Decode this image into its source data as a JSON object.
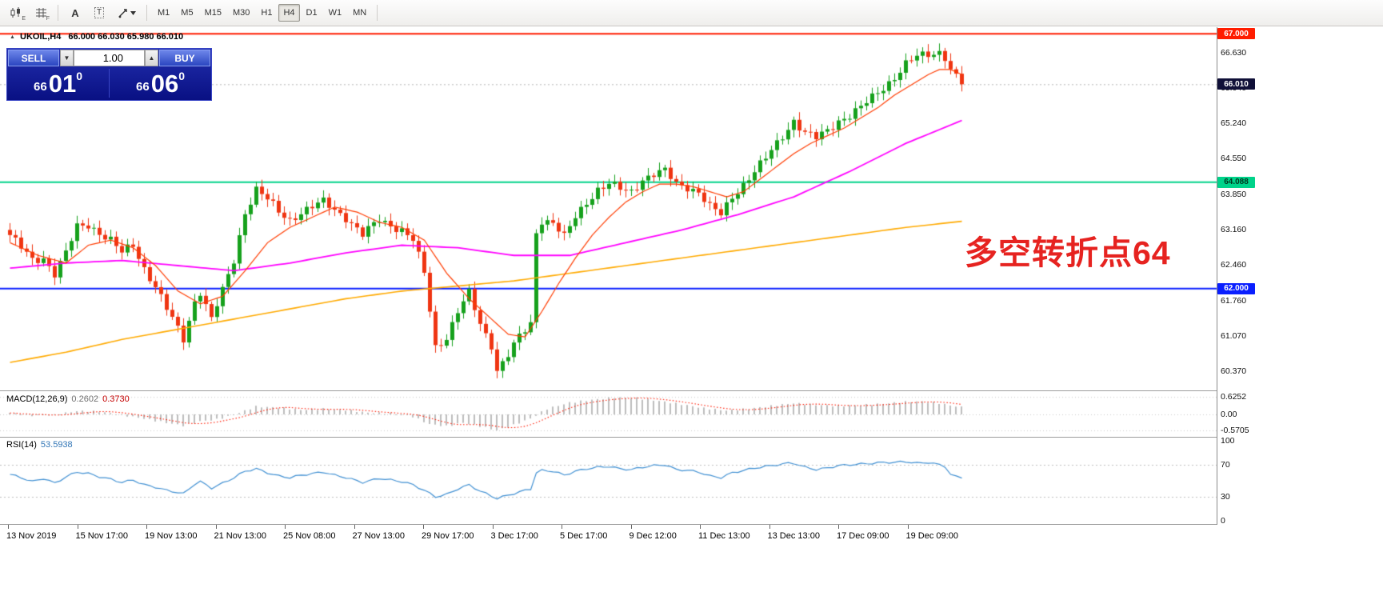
{
  "toolbar": {
    "icons": [
      {
        "name": "candlestick-chart-icon",
        "sub": "E"
      },
      {
        "name": "bar-grid-icon",
        "sub": "F"
      },
      {
        "name": "text-tool-icon",
        "glyph": "A"
      },
      {
        "name": "label-tool-icon",
        "glyph": "T"
      },
      {
        "name": "line-tools-icon",
        "sub": ""
      }
    ],
    "timeframes": [
      {
        "label": "M1",
        "active": false
      },
      {
        "label": "M5",
        "active": false
      },
      {
        "label": "M15",
        "active": false
      },
      {
        "label": "M30",
        "active": false
      },
      {
        "label": "H1",
        "active": false
      },
      {
        "label": "H4",
        "active": true
      },
      {
        "label": "D1",
        "active": false
      },
      {
        "label": "W1",
        "active": false
      },
      {
        "label": "MN",
        "active": false
      }
    ]
  },
  "chart": {
    "title_symbol": "UKOIL,H4",
    "title_ohlc": "66.000 66.030 65.980 66.010"
  },
  "trade_panel": {
    "sell_label": "SELL",
    "buy_label": "BUY",
    "volume": "1.00",
    "sell_price": {
      "small": "66",
      "big": "01",
      "sup": "0"
    },
    "buy_price": {
      "small": "66",
      "big": "06",
      "sup": "0"
    }
  },
  "annotation": {
    "text": "多空转折点64"
  },
  "price_scale": {
    "ticks": [
      "66.630",
      "65.940",
      "65.240",
      "64.550",
      "63.850",
      "63.160",
      "62.460",
      "61.760",
      "61.070",
      "60.370"
    ]
  },
  "macd_panel": {
    "name": "MACD(12,26,9)",
    "value_main": "0.2602",
    "value_signal": "0.3730",
    "scale": [
      {
        "v": 0.6252,
        "label": "0.6252"
      },
      {
        "v": 0.0,
        "label": "0.00"
      },
      {
        "v": -0.5705,
        "label": "-0.5705"
      }
    ]
  },
  "rsi_panel": {
    "name": "RSI(14)",
    "value": "53.5938",
    "scale": [
      {
        "v": 100,
        "label": "100"
      },
      {
        "v": 70,
        "label": "70"
      },
      {
        "v": 30,
        "label": "30"
      },
      {
        "v": 0,
        "label": "0"
      }
    ]
  },
  "chart_data": {
    "type": "candlestick",
    "symbol": "UKOIL",
    "timeframe": "H4",
    "last_ohlc": {
      "open": 66.0,
      "high": 66.03,
      "low": 65.98,
      "close": 66.01
    },
    "visible_price_range": [
      60.0,
      67.13
    ],
    "bars": 171,
    "h_lines": [
      {
        "price": 67.0,
        "color": "#ff1d00",
        "label": "67.000",
        "text": "#ffffff"
      },
      {
        "price": 64.088,
        "color": "#00d38a",
        "label": "64.088",
        "text": "#00361f"
      },
      {
        "price": 62.0,
        "color": "#0a1fff",
        "label": "62.000",
        "text": "#ffffff"
      }
    ],
    "bid_line": {
      "price": 66.01,
      "label": "66.010",
      "color": "#101038",
      "text": "#ffffff"
    },
    "candle_up_color": "#16a11c",
    "candle_down_color": "#ef3512",
    "close_path": [
      [
        0,
        63.05
      ],
      [
        2,
        62.8
      ],
      [
        4,
        62.55
      ],
      [
        6,
        62.6
      ],
      [
        8,
        62.3
      ],
      [
        10,
        62.7
      ],
      [
        12,
        63.2
      ],
      [
        14,
        63.25
      ],
      [
        16,
        63.1
      ],
      [
        18,
        62.95
      ],
      [
        20,
        62.7
      ],
      [
        22,
        62.85
      ],
      [
        24,
        62.4
      ],
      [
        26,
        62.05
      ],
      [
        28,
        61.6
      ],
      [
        31,
        61.0
      ],
      [
        33,
        61.75
      ],
      [
        34,
        61.95
      ],
      [
        36,
        61.4
      ],
      [
        38,
        61.95
      ],
      [
        40,
        62.55
      ],
      [
        42,
        63.5
      ],
      [
        44,
        63.95
      ],
      [
        46,
        63.75
      ],
      [
        48,
        63.5
      ],
      [
        50,
        63.35
      ],
      [
        52,
        63.5
      ],
      [
        54,
        63.6
      ],
      [
        56,
        63.7
      ],
      [
        58,
        63.55
      ],
      [
        60,
        63.4
      ],
      [
        63,
        63.05
      ],
      [
        66,
        63.35
      ],
      [
        68,
        63.25
      ],
      [
        70,
        63.15
      ],
      [
        72,
        62.95
      ],
      [
        74,
        62.3
      ],
      [
        76,
        60.85
      ],
      [
        78,
        61.05
      ],
      [
        80,
        61.55
      ],
      [
        82,
        61.9
      ],
      [
        84,
        61.3
      ],
      [
        86,
        60.9
      ],
      [
        87,
        60.4
      ],
      [
        89,
        60.7
      ],
      [
        91,
        61.05
      ],
      [
        93,
        61.3
      ],
      [
        94,
        63.1
      ],
      [
        95,
        63.35
      ],
      [
        97,
        63.3
      ],
      [
        99,
        63.0
      ],
      [
        101,
        63.4
      ],
      [
        103,
        63.7
      ],
      [
        105,
        63.95
      ],
      [
        107,
        64.05
      ],
      [
        109,
        63.95
      ],
      [
        111,
        63.9
      ],
      [
        113,
        64.15
      ],
      [
        115,
        64.25
      ],
      [
        117,
        64.3
      ],
      [
        119,
        64.05
      ],
      [
        121,
        64.0
      ],
      [
        123,
        63.9
      ],
      [
        125,
        63.6
      ],
      [
        127,
        63.45
      ],
      [
        129,
        63.8
      ],
      [
        131,
        64.05
      ],
      [
        133,
        64.3
      ],
      [
        135,
        64.55
      ],
      [
        137,
        64.85
      ],
      [
        139,
        65.15
      ],
      [
        140,
        65.3
      ],
      [
        142,
        65.05
      ],
      [
        144,
        64.95
      ],
      [
        146,
        65.1
      ],
      [
        148,
        65.3
      ],
      [
        150,
        65.4
      ],
      [
        152,
        65.55
      ],
      [
        154,
        65.75
      ],
      [
        156,
        65.95
      ],
      [
        158,
        66.15
      ],
      [
        160,
        66.4
      ],
      [
        162,
        66.55
      ],
      [
        164,
        66.6
      ],
      [
        166,
        66.65
      ],
      [
        167,
        66.55
      ],
      [
        168,
        66.3
      ],
      [
        169,
        66.15
      ],
      [
        170,
        66.01
      ]
    ],
    "ma_fast": {
      "color": "#ff3c00",
      "points": [
        [
          0,
          62.9
        ],
        [
          5,
          62.65
        ],
        [
          10,
          62.5
        ],
        [
          14,
          62.85
        ],
        [
          18,
          62.95
        ],
        [
          22,
          62.8
        ],
        [
          26,
          62.45
        ],
        [
          30,
          61.95
        ],
        [
          34,
          61.7
        ],
        [
          38,
          61.85
        ],
        [
          42,
          62.35
        ],
        [
          46,
          62.9
        ],
        [
          50,
          63.2
        ],
        [
          54,
          63.4
        ],
        [
          58,
          63.6
        ],
        [
          62,
          63.5
        ],
        [
          66,
          63.3
        ],
        [
          70,
          63.2
        ],
        [
          74,
          62.95
        ],
        [
          78,
          62.3
        ],
        [
          82,
          61.8
        ],
        [
          86,
          61.4
        ],
        [
          89,
          61.1
        ],
        [
          92,
          61.05
        ],
        [
          95,
          61.55
        ],
        [
          98,
          62.1
        ],
        [
          101,
          62.6
        ],
        [
          104,
          63.05
        ],
        [
          107,
          63.4
        ],
        [
          110,
          63.7
        ],
        [
          113,
          63.9
        ],
        [
          116,
          64.05
        ],
        [
          119,
          64.05
        ],
        [
          122,
          64.0
        ],
        [
          125,
          63.9
        ],
        [
          128,
          63.8
        ],
        [
          131,
          63.9
        ],
        [
          134,
          64.15
        ],
        [
          137,
          64.4
        ],
        [
          140,
          64.65
        ],
        [
          143,
          64.85
        ],
        [
          146,
          65.0
        ],
        [
          149,
          65.15
        ],
        [
          152,
          65.35
        ],
        [
          155,
          65.55
        ],
        [
          158,
          65.8
        ],
        [
          161,
          66.0
        ],
        [
          164,
          66.2
        ],
        [
          166,
          66.3
        ],
        [
          168,
          66.3
        ],
        [
          170,
          66.2
        ]
      ]
    },
    "ma_mid": {
      "color": "#ff00ff",
      "points": [
        [
          0,
          62.4
        ],
        [
          10,
          62.5
        ],
        [
          20,
          62.55
        ],
        [
          30,
          62.45
        ],
        [
          40,
          62.35
        ],
        [
          50,
          62.5
        ],
        [
          60,
          62.7
        ],
        [
          70,
          62.85
        ],
        [
          80,
          62.8
        ],
        [
          90,
          62.65
        ],
        [
          100,
          62.65
        ],
        [
          110,
          62.9
        ],
        [
          120,
          63.15
        ],
        [
          130,
          63.45
        ],
        [
          140,
          63.8
        ],
        [
          150,
          64.3
        ],
        [
          160,
          64.85
        ],
        [
          170,
          65.3
        ]
      ]
    },
    "ma_slow": {
      "color": "#ffaa00",
      "points": [
        [
          0,
          60.55
        ],
        [
          10,
          60.75
        ],
        [
          20,
          61.0
        ],
        [
          30,
          61.2
        ],
        [
          40,
          61.4
        ],
        [
          50,
          61.6
        ],
        [
          60,
          61.8
        ],
        [
          70,
          61.95
        ],
        [
          80,
          62.05
        ],
        [
          90,
          62.15
        ],
        [
          100,
          62.3
        ],
        [
          110,
          62.45
        ],
        [
          120,
          62.6
        ],
        [
          130,
          62.75
        ],
        [
          140,
          62.9
        ],
        [
          150,
          63.05
        ],
        [
          160,
          63.2
        ],
        [
          170,
          63.32
        ]
      ]
    },
    "macd": {
      "hist_color": "#bdbdbd",
      "signal_color": "#ff1a00",
      "range": [
        -0.8,
        0.8
      ],
      "hist": [
        [
          0,
          0.05
        ],
        [
          4,
          -0.04
        ],
        [
          8,
          -0.02
        ],
        [
          12,
          0.12
        ],
        [
          16,
          0.1
        ],
        [
          20,
          -0.02
        ],
        [
          24,
          -0.15
        ],
        [
          28,
          -0.3
        ],
        [
          31,
          -0.4
        ],
        [
          34,
          -0.25
        ],
        [
          37,
          -0.18
        ],
        [
          40,
          -0.02
        ],
        [
          44,
          0.28
        ],
        [
          48,
          0.24
        ],
        [
          52,
          0.16
        ],
        [
          56,
          0.2
        ],
        [
          60,
          0.16
        ],
        [
          64,
          0.06
        ],
        [
          68,
          0.04
        ],
        [
          72,
          -0.08
        ],
        [
          75,
          -0.35
        ],
        [
          78,
          -0.42
        ],
        [
          81,
          -0.3
        ],
        [
          84,
          -0.42
        ],
        [
          87,
          -0.57
        ],
        [
          90,
          -0.38
        ],
        [
          93,
          -0.15
        ],
        [
          96,
          0.2
        ],
        [
          100,
          0.42
        ],
        [
          104,
          0.52
        ],
        [
          108,
          0.6
        ],
        [
          112,
          0.58
        ],
        [
          116,
          0.48
        ],
        [
          120,
          0.36
        ],
        [
          124,
          0.22
        ],
        [
          128,
          0.14
        ],
        [
          132,
          0.2
        ],
        [
          136,
          0.3
        ],
        [
          140,
          0.4
        ],
        [
          144,
          0.34
        ],
        [
          148,
          0.3
        ],
        [
          152,
          0.33
        ],
        [
          156,
          0.38
        ],
        [
          160,
          0.45
        ],
        [
          163,
          0.46
        ],
        [
          166,
          0.4
        ],
        [
          168,
          0.32
        ],
        [
          170,
          0.26
        ]
      ]
    },
    "rsi": {
      "color": "#3f8fd2",
      "levels": [
        70,
        30
      ],
      "points": [
        [
          0,
          58
        ],
        [
          2,
          54
        ],
        [
          4,
          49
        ],
        [
          6,
          53
        ],
        [
          8,
          47
        ],
        [
          10,
          55
        ],
        [
          12,
          61
        ],
        [
          14,
          59
        ],
        [
          16,
          55
        ],
        [
          18,
          52
        ],
        [
          20,
          48
        ],
        [
          22,
          51
        ],
        [
          24,
          45
        ],
        [
          26,
          42
        ],
        [
          28,
          38
        ],
        [
          31,
          34
        ],
        [
          33,
          46
        ],
        [
          34,
          49
        ],
        [
          36,
          41
        ],
        [
          38,
          47
        ],
        [
          40,
          54
        ],
        [
          42,
          62
        ],
        [
          44,
          65
        ],
        [
          46,
          60
        ],
        [
          48,
          56
        ],
        [
          50,
          54
        ],
        [
          52,
          57
        ],
        [
          54,
          59
        ],
        [
          56,
          61
        ],
        [
          58,
          57
        ],
        [
          60,
          54
        ],
        [
          63,
          48
        ],
        [
          66,
          53
        ],
        [
          68,
          51
        ],
        [
          70,
          49
        ],
        [
          72,
          45
        ],
        [
          74,
          38
        ],
        [
          76,
          30
        ],
        [
          78,
          33
        ],
        [
          80,
          40
        ],
        [
          82,
          45
        ],
        [
          84,
          37
        ],
        [
          86,
          31
        ],
        [
          87,
          28
        ],
        [
          89,
          32
        ],
        [
          91,
          36
        ],
        [
          93,
          40
        ],
        [
          94,
          60
        ],
        [
          95,
          63
        ],
        [
          97,
          62
        ],
        [
          99,
          57
        ],
        [
          101,
          62
        ],
        [
          103,
          65
        ],
        [
          105,
          67
        ],
        [
          107,
          68
        ],
        [
          109,
          65
        ],
        [
          111,
          64
        ],
        [
          113,
          67
        ],
        [
          115,
          69
        ],
        [
          117,
          70
        ],
        [
          119,
          64
        ],
        [
          121,
          63
        ],
        [
          123,
          61
        ],
        [
          125,
          56
        ],
        [
          127,
          54
        ],
        [
          129,
          60
        ],
        [
          131,
          63
        ],
        [
          133,
          66
        ],
        [
          135,
          68
        ],
        [
          137,
          70
        ],
        [
          139,
          72
        ],
        [
          140,
          72
        ],
        [
          142,
          67
        ],
        [
          144,
          64
        ],
        [
          146,
          66
        ],
        [
          148,
          69
        ],
        [
          150,
          70
        ],
        [
          152,
          71
        ],
        [
          154,
          72
        ],
        [
          156,
          73
        ],
        [
          158,
          73
        ],
        [
          160,
          74
        ],
        [
          162,
          72
        ],
        [
          164,
          73
        ],
        [
          166,
          70
        ],
        [
          167,
          68
        ],
        [
          168,
          58
        ],
        [
          169,
          55
        ],
        [
          170,
          54
        ]
      ]
    },
    "x_labels": [
      "13 Nov 2019",
      "15 Nov 17:00",
      "19 Nov 13:00",
      "21 Nov 13:00",
      "25 Nov 08:00",
      "27 Nov 13:00",
      "29 Nov 17:00",
      "3 Dec 17:00",
      "5 Dec 17:00",
      "9 Dec 12:00",
      "11 Dec 13:00",
      "13 Dec 13:00",
      "17 Dec 09:00",
      "19 Dec 09:00"
    ]
  }
}
